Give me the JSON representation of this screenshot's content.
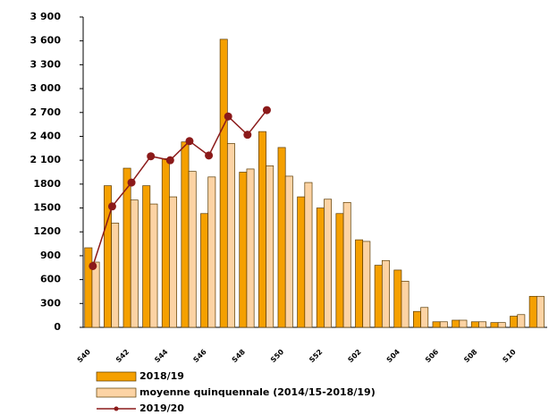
{
  "chart_data": {
    "type": "bar_line",
    "categories": [
      "S40",
      null,
      "S42",
      null,
      "S44",
      null,
      "S46",
      null,
      "S48",
      null,
      "S50",
      null,
      "S52",
      null,
      "S02",
      null,
      "S04",
      null,
      "S06",
      null,
      "S08",
      null,
      "S10",
      null
    ],
    "series": [
      {
        "name": "2018/19",
        "type": "bar",
        "color": "#f5a000",
        "values": [
          1000,
          1780,
          2000,
          1780,
          2120,
          2330,
          1430,
          3620,
          1950,
          2460,
          2260,
          1640,
          1500,
          1430,
          1100,
          780,
          720,
          200,
          70,
          90,
          70,
          60,
          140,
          390
        ]
      },
      {
        "name": "moyenne quinquennale (2014/15-2018/19)",
        "type": "bar",
        "color": "#fcd3a4",
        "values": [
          820,
          1310,
          1600,
          1550,
          1640,
          1960,
          1890,
          2310,
          1990,
          2030,
          1900,
          1820,
          1610,
          1570,
          1080,
          840,
          580,
          250,
          70,
          90,
          70,
          60,
          160,
          390
        ]
      },
      {
        "name": "2019/20",
        "type": "line",
        "color": "#8b1a1a",
        "values": [
          770,
          1520,
          1820,
          2150,
          2100,
          2340,
          2160,
          2650,
          2420,
          2730,
          null,
          null,
          null,
          null,
          null,
          null,
          null,
          null,
          null,
          null,
          null,
          null,
          null,
          null
        ]
      }
    ],
    "ylim": [
      0,
      3900
    ],
    "yticks": [
      0,
      300,
      600,
      900,
      1200,
      1500,
      1800,
      {
        "value": 2100,
        "label": "2 100"
      },
      {
        "value": 2400,
        "label": "2 400"
      },
      {
        "value": 2700,
        "label": "2 700"
      },
      {
        "value": 3000,
        "label": "3 000"
      },
      {
        "value": 3300,
        "label": "3 300"
      },
      {
        "value": 3600,
        "label": "3 600"
      },
      {
        "value": 3900,
        "label": "3 900"
      }
    ]
  }
}
